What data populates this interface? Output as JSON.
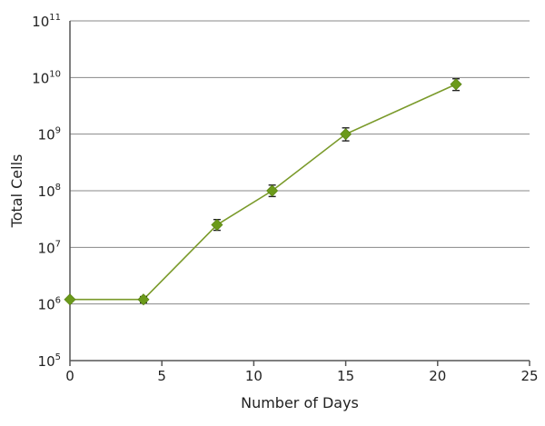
{
  "chart_data": {
    "type": "line",
    "title": "",
    "xlabel": "Number of Days",
    "ylabel": "Total Cells",
    "xlim": [
      0,
      25
    ],
    "ylim": [
      100000,
      100000000000
    ],
    "y_scale": "log10",
    "x_ticks": [
      "0",
      "5",
      "10",
      "15",
      "20",
      "25"
    ],
    "y_ticks": [
      {
        "base": "10",
        "exp": "5",
        "value": 100000
      },
      {
        "base": "10",
        "exp": "6",
        "value": 1000000
      },
      {
        "base": "10",
        "exp": "7",
        "value": 10000000
      },
      {
        "base": "10",
        "exp": "8",
        "value": 100000000
      },
      {
        "base": "10",
        "exp": "9",
        "value": 1000000000
      },
      {
        "base": "10",
        "exp": "10",
        "value": 10000000000
      },
      {
        "base": "10",
        "exp": "11",
        "value": 100000000000
      }
    ],
    "grid": "horizontal",
    "legend": "none",
    "colors": {
      "line": "#7a9a2a",
      "marker": "#6b9a1a",
      "errorbar": "#222222",
      "grid": "#888888",
      "axis": "#555555"
    },
    "series": [
      {
        "marker": "diamond",
        "points": [
          {
            "x": 0,
            "y": 1200000,
            "err_low": 1200000,
            "err_high": 1200000
          },
          {
            "x": 4,
            "y": 1200000,
            "err_low": 1050000,
            "err_high": 1350000
          },
          {
            "x": 8,
            "y": 25000000,
            "err_low": 20000000,
            "err_high": 31000000
          },
          {
            "x": 11,
            "y": 100000000,
            "err_low": 79000000,
            "err_high": 126000000
          },
          {
            "x": 15,
            "y": 1000000000,
            "err_low": 760000000,
            "err_high": 1290000000
          },
          {
            "x": 21,
            "y": 7600000000,
            "err_low": 5900000000,
            "err_high": 9500000000
          }
        ]
      }
    ]
  }
}
